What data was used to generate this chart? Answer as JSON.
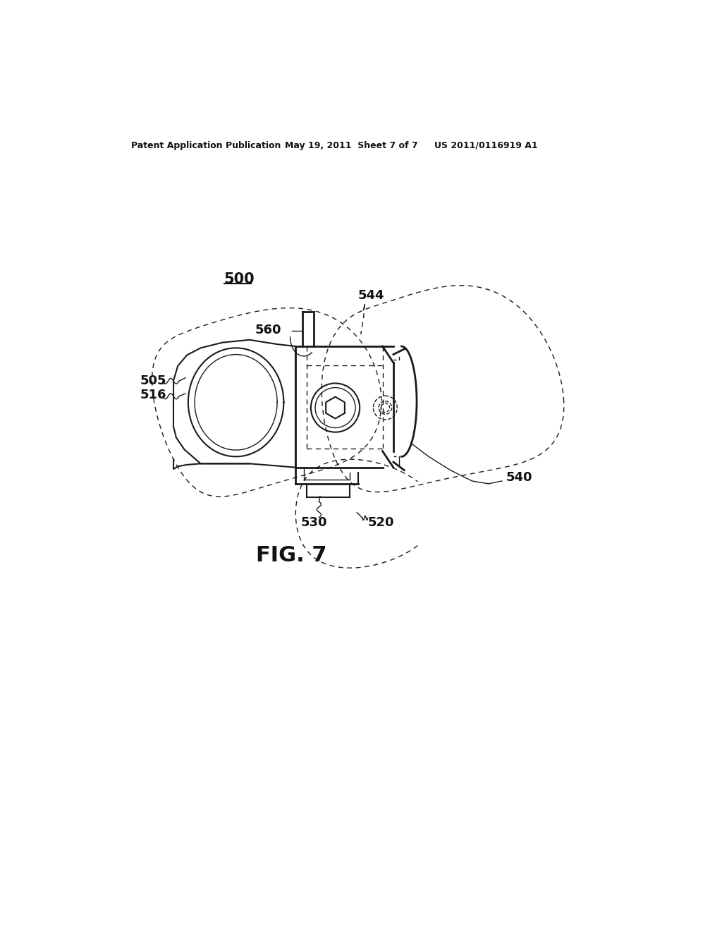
{
  "bg_color": "#ffffff",
  "header_left": "Patent Application Publication",
  "header_mid": "May 19, 2011  Sheet 7 of 7",
  "header_right": "US 2011/0116919 A1",
  "fig_label": "FIG. 7",
  "ref_500": "500",
  "ref_505": "505",
  "ref_516": "516",
  "ref_520": "520",
  "ref_530": "530",
  "ref_540": "540",
  "ref_544": "544",
  "ref_560": "560",
  "line_color": "#1a1a1a",
  "lw_thick": 2.0,
  "lw_main": 1.5,
  "lw_thin": 1.0,
  "lw_hair": 0.7
}
